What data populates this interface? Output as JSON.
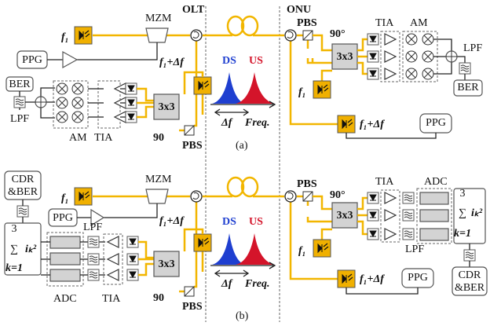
{
  "header": {
    "olt": "OLT",
    "onu": "ONU"
  },
  "panel_a": {
    "caption": "(a)",
    "olt": {
      "laser": "f₁",
      "modulator": "MZM",
      "generator": "PPG",
      "tester": "BER",
      "filter": "LPF",
      "local_oscillator": "f₁+Δf",
      "hybrid": "3x3",
      "phase": "90",
      "splitter": "PBS",
      "mixers": "AM",
      "amplifiers": "TIA"
    },
    "spectrum": {
      "downstream": "DS",
      "upstream": "US",
      "offset": "Δf",
      "axis": "Freq."
    },
    "onu": {
      "splitter": "PBS",
      "phase": "90°",
      "hybrid": "3x3",
      "local_oscillator": "f₁",
      "amplifiers": "TIA",
      "mixers": "AM",
      "filter": "LPF",
      "tester": "BER",
      "laser": "f₁+Δf",
      "generator": "PPG"
    }
  },
  "panel_b": {
    "caption": "(b)",
    "olt": {
      "laser": "f₁",
      "modulator": "MZM",
      "generator": "PPG",
      "tester": [
        "CDR",
        "&BER"
      ],
      "filter": "LPF",
      "sum": {
        "symbol": "∑",
        "upper": "3",
        "lower": "k=1",
        "term": "iₖ²"
      },
      "converter": "ADC",
      "amplifiers": "TIA",
      "local_oscillator": "f₁+Δf",
      "hybrid": "3x3",
      "phase": "90",
      "splitter": "PBS"
    },
    "spectrum": {
      "downstream": "DS",
      "upstream": "US",
      "offset": "Δf",
      "axis": "Freq."
    },
    "onu": {
      "splitter": "PBS",
      "phase": "90°",
      "hybrid": "3x3",
      "local_oscillator": "f₁",
      "amplifiers": "TIA",
      "converter": "ADC",
      "sum": {
        "symbol": "∑",
        "upper": "3",
        "lower": "k=1",
        "term": "iₖ²"
      },
      "filter": "LPF",
      "tester": [
        "CDR",
        "&BER"
      ],
      "laser": "f₁+Δf",
      "generator": "PPG"
    }
  }
}
